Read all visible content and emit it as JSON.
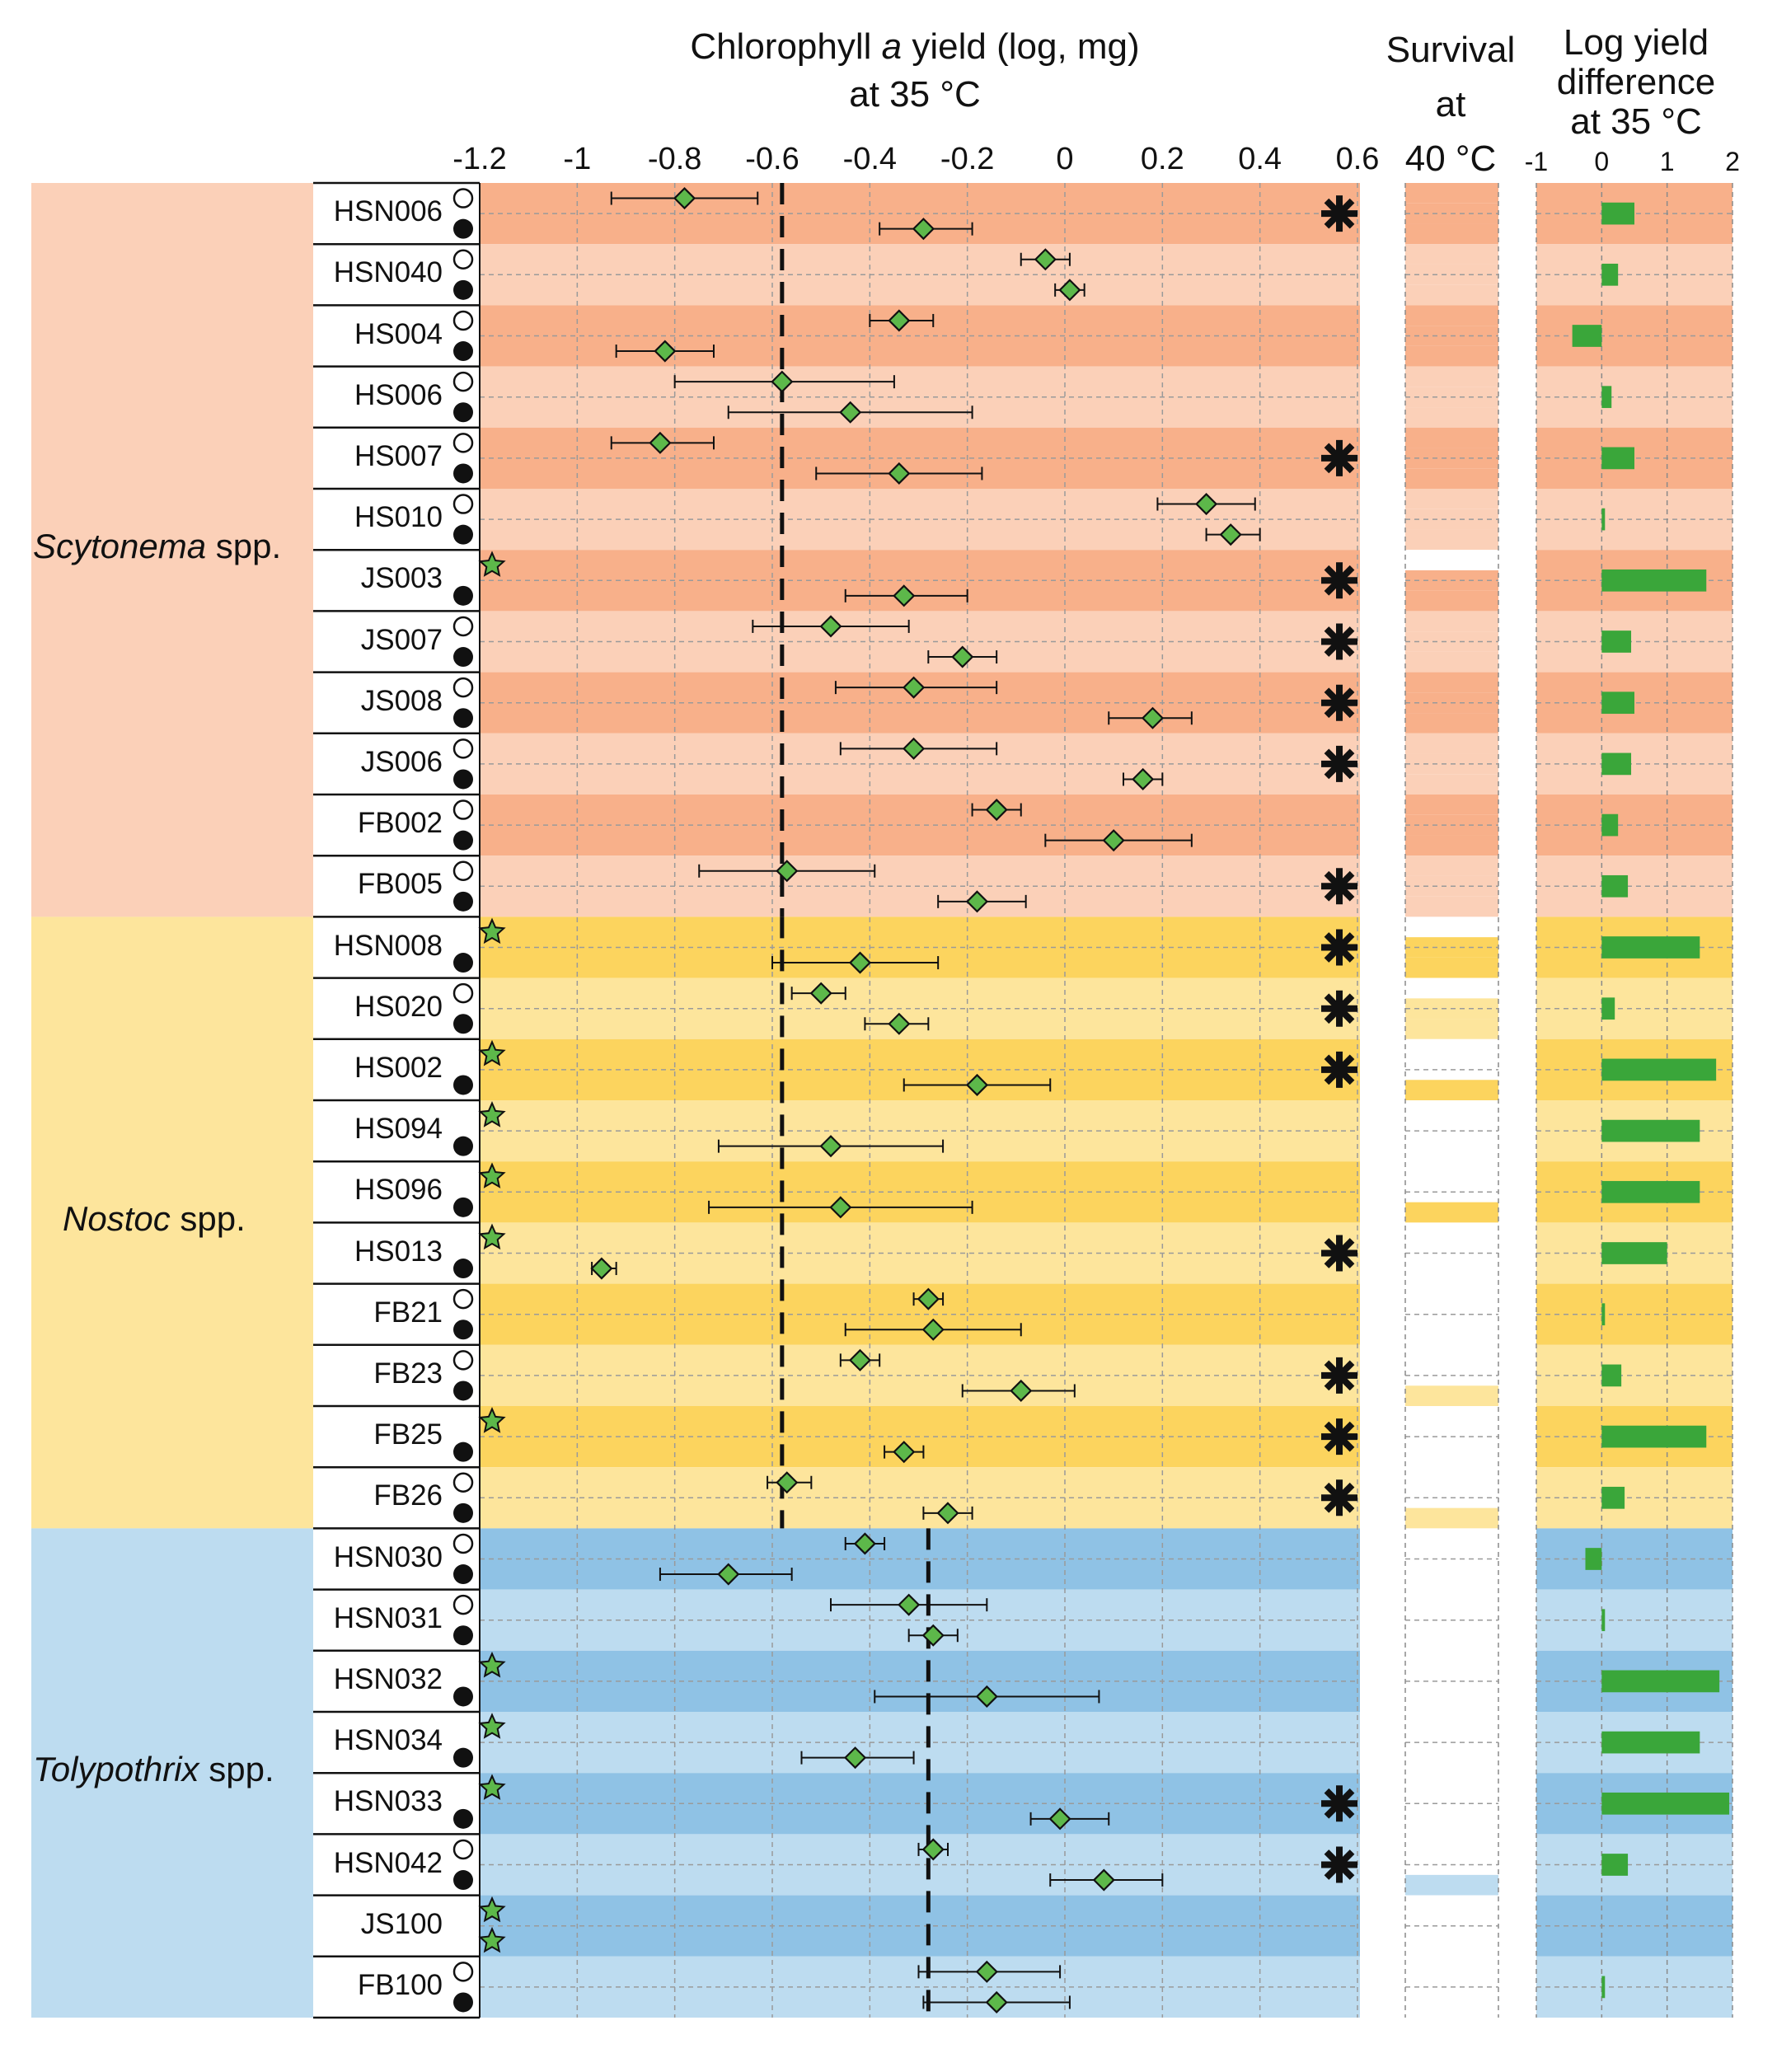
{
  "chart_data": {
    "type": "forest-plot",
    "title_main": [
      "Chlorophyll",
      "a",
      " yield (log, mg)",
      "at 35 °C"
    ],
    "title_survival": [
      "Survival",
      "at",
      "40 °C"
    ],
    "title_diff": [
      "Log yield",
      "difference",
      "at 35 °C"
    ],
    "x_ticks_main": [
      "-1.2",
      "-1",
      "-0.8",
      "-0.6",
      "-0.4",
      "-0.2",
      "0",
      "0.2",
      "0.4",
      "0.6"
    ],
    "xlim_main": [
      -1.2,
      0.6
    ],
    "x_ticks_diff": [
      "-1",
      "0",
      "1",
      "2"
    ],
    "xlim_diff": [
      -1,
      2
    ],
    "reference_lines": [
      {
        "group": "Scytonema",
        "x": -0.58
      },
      {
        "group": "Nostoc",
        "x": -0.58
      },
      {
        "group": "Tolypothrix",
        "x": -0.28
      }
    ],
    "colors": {
      "scy_dark": "#f8b08a",
      "scy_light": "#fbd0b8",
      "nos_dark": "#fcd45e",
      "nos_light": "#fde59c",
      "tol_dark": "#8fc2e5",
      "tol_light": "#bddcf0",
      "marker": "#5db84a",
      "bar": "#3aa63a"
    },
    "groups": [
      {
        "genus": "Scytonema",
        "suffix": " spp.",
        "first_row": 0,
        "last_row": 11
      },
      {
        "genus": "Nostoc",
        "suffix": " spp.",
        "first_row": 12,
        "last_row": 21
      },
      {
        "genus": "Tolypothrix",
        "suffix": " spp.",
        "first_row": 22,
        "last_row": 29
      }
    ],
    "strains": [
      {
        "name": "HSN006",
        "group": 0,
        "dark": true,
        "v1": -0.78,
        "lo1": -0.93,
        "hi1": -0.63,
        "v2": -0.29,
        "lo2": -0.38,
        "hi2": -0.19,
        "sig": true,
        "surv": [
          true,
          true,
          true
        ],
        "diff": 0.5,
        "star1": false,
        "star2": false
      },
      {
        "name": "HSN040",
        "group": 0,
        "dark": false,
        "v1": -0.04,
        "lo1": -0.09,
        "hi1": 0.01,
        "v2": 0.01,
        "lo2": -0.02,
        "hi2": 0.04,
        "sig": false,
        "surv": [
          true,
          true,
          true
        ],
        "diff": 0.25,
        "star1": false,
        "star2": false
      },
      {
        "name": "HS004",
        "group": 0,
        "dark": true,
        "v1": -0.34,
        "lo1": -0.4,
        "hi1": -0.27,
        "v2": -0.82,
        "lo2": -0.92,
        "hi2": -0.72,
        "sig": false,
        "surv": [
          true,
          true,
          true
        ],
        "diff": -0.45,
        "star1": false,
        "star2": false
      },
      {
        "name": "HS006",
        "group": 0,
        "dark": false,
        "v1": -0.58,
        "lo1": -0.8,
        "hi1": -0.35,
        "v2": -0.44,
        "lo2": -0.69,
        "hi2": -0.19,
        "sig": false,
        "surv": [
          true,
          true,
          true
        ],
        "diff": 0.15,
        "star1": false,
        "star2": false
      },
      {
        "name": "HS007",
        "group": 0,
        "dark": true,
        "v1": -0.83,
        "lo1": -0.93,
        "hi1": -0.72,
        "v2": -0.34,
        "lo2": -0.51,
        "hi2": -0.17,
        "sig": true,
        "surv": [
          true,
          true,
          true
        ],
        "diff": 0.5,
        "star1": false,
        "star2": false
      },
      {
        "name": "HS010",
        "group": 0,
        "dark": false,
        "v1": 0.29,
        "lo1": 0.19,
        "hi1": 0.39,
        "v2": 0.34,
        "lo2": 0.29,
        "hi2": 0.4,
        "sig": false,
        "surv": [
          true,
          true,
          true
        ],
        "diff": 0.05,
        "star1": false,
        "star2": false
      },
      {
        "name": "JS003",
        "group": 0,
        "dark": true,
        "v1": null,
        "lo1": null,
        "hi1": null,
        "v2": -0.33,
        "lo2": -0.45,
        "hi2": -0.2,
        "sig": true,
        "surv": [
          false,
          true,
          true
        ],
        "diff": 1.6,
        "star1": true,
        "star2": false
      },
      {
        "name": "JS007",
        "group": 0,
        "dark": false,
        "v1": -0.48,
        "lo1": -0.64,
        "hi1": -0.32,
        "v2": -0.21,
        "lo2": -0.28,
        "hi2": -0.14,
        "sig": true,
        "surv": [
          true,
          true,
          true
        ],
        "diff": 0.45,
        "star1": false,
        "star2": false
      },
      {
        "name": "JS008",
        "group": 0,
        "dark": true,
        "v1": -0.31,
        "lo1": -0.47,
        "hi1": -0.14,
        "v2": 0.18,
        "lo2": 0.09,
        "hi2": 0.26,
        "sig": true,
        "surv": [
          true,
          true,
          true
        ],
        "diff": 0.5,
        "star1": false,
        "star2": false
      },
      {
        "name": "JS006",
        "group": 0,
        "dark": false,
        "v1": -0.31,
        "lo1": -0.46,
        "hi1": -0.14,
        "v2": 0.16,
        "lo2": 0.12,
        "hi2": 0.2,
        "sig": true,
        "surv": [
          true,
          true,
          true
        ],
        "diff": 0.45,
        "star1": false,
        "star2": false
      },
      {
        "name": "FB002",
        "group": 0,
        "dark": true,
        "v1": -0.14,
        "lo1": -0.19,
        "hi1": -0.09,
        "v2": 0.1,
        "lo2": -0.04,
        "hi2": 0.26,
        "sig": false,
        "surv": [
          true,
          true,
          true
        ],
        "diff": 0.25,
        "star1": false,
        "star2": false
      },
      {
        "name": "FB005",
        "group": 0,
        "dark": false,
        "v1": -0.57,
        "lo1": -0.75,
        "hi1": -0.39,
        "v2": -0.18,
        "lo2": -0.26,
        "hi2": -0.08,
        "sig": true,
        "surv": [
          true,
          true,
          true
        ],
        "diff": 0.4,
        "star1": false,
        "star2": false
      },
      {
        "name": "HSN008",
        "group": 1,
        "dark": true,
        "v1": null,
        "lo1": null,
        "hi1": null,
        "v2": -0.42,
        "lo2": -0.6,
        "hi2": -0.26,
        "sig": true,
        "surv": [
          false,
          true,
          true
        ],
        "diff": 1.5,
        "star1": true,
        "star2": false
      },
      {
        "name": "HS020",
        "group": 1,
        "dark": false,
        "v1": -0.5,
        "lo1": -0.56,
        "hi1": -0.45,
        "v2": -0.34,
        "lo2": -0.41,
        "hi2": -0.28,
        "sig": true,
        "surv": [
          false,
          true,
          true
        ],
        "diff": 0.2,
        "star1": false,
        "star2": false
      },
      {
        "name": "HS002",
        "group": 1,
        "dark": true,
        "v1": null,
        "lo1": null,
        "hi1": null,
        "v2": -0.18,
        "lo2": -0.33,
        "hi2": -0.03,
        "sig": true,
        "surv": [
          false,
          false,
          true
        ],
        "diff": 1.75,
        "star1": true,
        "star2": false
      },
      {
        "name": "HS094",
        "group": 1,
        "dark": false,
        "v1": null,
        "lo1": null,
        "hi1": null,
        "v2": -0.48,
        "lo2": -0.71,
        "hi2": -0.25,
        "sig": false,
        "surv": [
          false,
          false,
          false
        ],
        "diff": 1.5,
        "star1": true,
        "star2": false
      },
      {
        "name": "HS096",
        "group": 1,
        "dark": true,
        "v1": null,
        "lo1": null,
        "hi1": null,
        "v2": -0.46,
        "lo2": -0.73,
        "hi2": -0.19,
        "sig": false,
        "surv": [
          false,
          false,
          true
        ],
        "diff": 1.5,
        "star1": true,
        "star2": false
      },
      {
        "name": "HS013",
        "group": 1,
        "dark": false,
        "v1": null,
        "lo1": null,
        "hi1": null,
        "v2": -0.95,
        "lo2": -0.97,
        "hi2": -0.92,
        "sig": true,
        "surv": [
          false,
          false,
          false
        ],
        "diff": 1.0,
        "star1": true,
        "star2": false
      },
      {
        "name": "FB21",
        "group": 1,
        "dark": true,
        "v1": -0.28,
        "lo1": -0.31,
        "hi1": -0.25,
        "v2": -0.27,
        "lo2": -0.45,
        "hi2": -0.09,
        "sig": false,
        "surv": [
          false,
          false,
          false
        ],
        "diff": 0.05,
        "star1": false,
        "star2": false
      },
      {
        "name": "FB23",
        "group": 1,
        "dark": false,
        "v1": -0.42,
        "lo1": -0.46,
        "hi1": -0.38,
        "v2": -0.09,
        "lo2": -0.21,
        "hi2": 0.02,
        "sig": true,
        "surv": [
          false,
          false,
          true
        ],
        "diff": 0.3,
        "star1": false,
        "star2": false
      },
      {
        "name": "FB25",
        "group": 1,
        "dark": true,
        "v1": null,
        "lo1": null,
        "hi1": null,
        "v2": -0.33,
        "lo2": -0.37,
        "hi2": -0.29,
        "sig": true,
        "surv": [
          false,
          false,
          false
        ],
        "diff": 1.6,
        "star1": true,
        "star2": false
      },
      {
        "name": "FB26",
        "group": 1,
        "dark": false,
        "v1": -0.57,
        "lo1": -0.61,
        "hi1": -0.52,
        "v2": -0.24,
        "lo2": -0.29,
        "hi2": -0.19,
        "sig": true,
        "surv": [
          false,
          false,
          true
        ],
        "diff": 0.35,
        "star1": false,
        "star2": false
      },
      {
        "name": "HSN030",
        "group": 2,
        "dark": true,
        "v1": -0.41,
        "lo1": -0.45,
        "hi1": -0.37,
        "v2": -0.69,
        "lo2": -0.83,
        "hi2": -0.56,
        "sig": false,
        "surv": [
          false,
          false,
          false
        ],
        "diff": -0.25,
        "star1": false,
        "star2": false
      },
      {
        "name": "HSN031",
        "group": 2,
        "dark": false,
        "v1": -0.32,
        "lo1": -0.48,
        "hi1": -0.16,
        "v2": -0.27,
        "lo2": -0.32,
        "hi2": -0.22,
        "sig": false,
        "surv": [
          false,
          false,
          false
        ],
        "diff": 0.05,
        "star1": false,
        "star2": false
      },
      {
        "name": "HSN032",
        "group": 2,
        "dark": true,
        "v1": null,
        "lo1": null,
        "hi1": null,
        "v2": -0.16,
        "lo2": -0.39,
        "hi2": 0.07,
        "sig": false,
        "surv": [
          false,
          false,
          false
        ],
        "diff": 1.8,
        "star1": true,
        "star2": false
      },
      {
        "name": "HSN034",
        "group": 2,
        "dark": false,
        "v1": null,
        "lo1": null,
        "hi1": null,
        "v2": -0.43,
        "lo2": -0.54,
        "hi2": -0.31,
        "sig": false,
        "surv": [
          false,
          false,
          false
        ],
        "diff": 1.5,
        "star1": true,
        "star2": false
      },
      {
        "name": "HSN033",
        "group": 2,
        "dark": true,
        "v1": null,
        "lo1": null,
        "hi1": null,
        "v2": -0.01,
        "lo2": -0.07,
        "hi2": 0.09,
        "sig": true,
        "surv": [
          false,
          false,
          false
        ],
        "diff": 1.95,
        "star1": true,
        "star2": false
      },
      {
        "name": "HSN042",
        "group": 2,
        "dark": false,
        "v1": -0.27,
        "lo1": -0.3,
        "hi1": -0.24,
        "v2": 0.08,
        "lo2": -0.03,
        "hi2": 0.2,
        "sig": true,
        "surv": [
          false,
          false,
          true
        ],
        "diff": 0.4,
        "star1": false,
        "star2": false
      },
      {
        "name": "JS100",
        "group": 2,
        "dark": true,
        "v1": null,
        "lo1": null,
        "hi1": null,
        "v2": null,
        "lo2": null,
        "hi2": null,
        "sig": false,
        "surv": [
          false,
          false,
          false
        ],
        "diff": 0.0,
        "star1": true,
        "star2": true
      },
      {
        "name": "FB100",
        "group": 2,
        "dark": false,
        "v1": -0.16,
        "lo1": -0.3,
        "hi1": -0.01,
        "v2": -0.14,
        "lo2": -0.29,
        "hi2": 0.01,
        "sig": false,
        "surv": [
          false,
          false,
          false
        ],
        "diff": 0.05,
        "star1": false,
        "star2": false
      }
    ]
  }
}
